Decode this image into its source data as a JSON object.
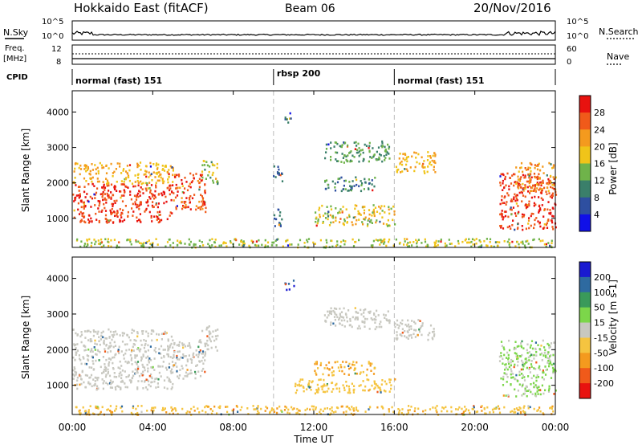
{
  "header": {
    "station": "Hokkaido East (fitACF)",
    "beam": "Beam 06",
    "date": "20/Nov/2016"
  },
  "top_panels": {
    "nsky_label": "N.Sky",
    "nsky_ticks": [
      "10^5",
      "10^0"
    ],
    "nsearch_label": "N.Search",
    "nsearch_ticks": [
      "10^5",
      "10^0"
    ],
    "freq_label_1": "Freq.",
    "freq_label_2": "[MHz]",
    "freq_ticks": [
      "12",
      "8"
    ],
    "nave_label": "Nave",
    "nave_ticks": [
      "60",
      "0"
    ],
    "cpid_label": "CPID",
    "cpid_segments": [
      {
        "label": "normal (fast) 151",
        "start_hour": 0,
        "end_hour": 10
      },
      {
        "label": "rbsp 200",
        "start_hour": 10,
        "end_hour": 16
      },
      {
        "label": "normal (fast) 151",
        "start_hour": 16,
        "end_hour": 24
      }
    ]
  },
  "chart_data": [
    {
      "type": "heatmap",
      "title": "",
      "xlabel": "Time UT",
      "ylabel": "Slant Range [km]",
      "xlim": [
        0,
        24
      ],
      "ylim": [
        180,
        4600
      ],
      "x_ticks": [
        "00:00",
        "04:00",
        "08:00",
        "12:00",
        "16:00",
        "20:00",
        "00:00"
      ],
      "y_ticks": [
        "1000",
        "2000",
        "3000",
        "4000"
      ],
      "colorbar_label": "Power [dB]",
      "colorbar_ticks": [
        "4",
        "8",
        "12",
        "16",
        "20",
        "24",
        "28"
      ],
      "colorbar_colors": [
        "#1010e8",
        "#2e4fa0",
        "#3a7f6a",
        "#6fb34a",
        "#f0c419",
        "#f49a1e",
        "#f05a1a",
        "#e8120f"
      ],
      "regions": [
        {
          "t0": 0.0,
          "t1": 5.0,
          "r0": 900,
          "r1": 2000,
          "value": 28
        },
        {
          "t0": 0.0,
          "t1": 5.0,
          "r0": 2000,
          "r1": 2600,
          "value": 20
        },
        {
          "t0": 5.0,
          "t1": 6.6,
          "r0": 1200,
          "r1": 2300,
          "value": 26
        },
        {
          "t0": 6.4,
          "t1": 7.2,
          "r0": 2000,
          "r1": 2700,
          "value": 14
        },
        {
          "t0": 9.9,
          "t1": 10.4,
          "r0": 2000,
          "r1": 2500,
          "value": 8
        },
        {
          "t0": 10.0,
          "t1": 10.5,
          "r0": 800,
          "r1": 1300,
          "value": 8
        },
        {
          "t0": 10.5,
          "t1": 11.0,
          "r0": 3700,
          "r1": 4000,
          "value": 6
        },
        {
          "t0": 12.5,
          "t1": 15.8,
          "r0": 2600,
          "r1": 3200,
          "value": 12
        },
        {
          "t0": 16.0,
          "t1": 18.0,
          "r0": 2300,
          "r1": 2900,
          "value": 20
        },
        {
          "t0": 12.0,
          "t1": 16.0,
          "r0": 800,
          "r1": 1400,
          "value": 18
        },
        {
          "t0": 12.5,
          "t1": 15.0,
          "r0": 1800,
          "r1": 2200,
          "value": 10
        },
        {
          "t0": 21.2,
          "t1": 24.0,
          "r0": 700,
          "r1": 2300,
          "value": 28
        },
        {
          "t0": 22.0,
          "t1": 24.0,
          "r0": 1800,
          "r1": 2600,
          "value": 22
        },
        {
          "t0": 0.0,
          "t1": 24.0,
          "r0": 200,
          "r1": 450,
          "value": 16
        }
      ]
    },
    {
      "type": "heatmap",
      "title": "",
      "xlabel": "Time UT",
      "ylabel": "Slant Range [km]",
      "xlim": [
        0,
        24
      ],
      "ylim": [
        180,
        4600
      ],
      "x_ticks": [
        "00:00",
        "04:00",
        "08:00",
        "12:00",
        "16:00",
        "20:00",
        "00:00"
      ],
      "y_ticks": [
        "1000",
        "2000",
        "3000",
        "4000"
      ],
      "colorbar_label": "Velocity [m s-1]",
      "colorbar_ticks": [
        "200",
        "100",
        "50",
        "15",
        "-15",
        "-50",
        "-100",
        "-200"
      ],
      "colorbar_colors": [
        "#1a1ad0",
        "#2e6aa0",
        "#3a9a5a",
        "#7cd64a",
        "#c8c8c0",
        "#f5c440",
        "#f49a1e",
        "#f05a1a",
        "#e8120f"
      ],
      "regions": [
        {
          "t0": 0.0,
          "t1": 5.0,
          "r0": 900,
          "r1": 2000,
          "value": 0
        },
        {
          "t0": 0.0,
          "t1": 5.0,
          "r0": 2000,
          "r1": 2600,
          "value": 0
        },
        {
          "t0": 5.0,
          "t1": 6.6,
          "r0": 1200,
          "r1": 2300,
          "value": 0
        },
        {
          "t0": 6.4,
          "t1": 7.2,
          "r0": 2000,
          "r1": 2700,
          "value": 0
        },
        {
          "t0": 10.5,
          "t1": 11.0,
          "r0": 3700,
          "r1": 4000,
          "value": 200
        },
        {
          "t0": 12.5,
          "t1": 15.8,
          "r0": 2600,
          "r1": 3200,
          "value": 0
        },
        {
          "t0": 16.0,
          "t1": 18.0,
          "r0": 2300,
          "r1": 2900,
          "value": 0
        },
        {
          "t0": 12.0,
          "t1": 15.0,
          "r0": 1300,
          "r1": 1700,
          "value": -50
        },
        {
          "t0": 11.0,
          "t1": 16.0,
          "r0": 800,
          "r1": 1200,
          "value": -30
        },
        {
          "t0": 21.2,
          "t1": 24.0,
          "r0": 700,
          "r1": 2300,
          "value": 20
        },
        {
          "t0": 0.0,
          "t1": 24.0,
          "r0": 200,
          "r1": 450,
          "value": -40
        }
      ]
    }
  ]
}
